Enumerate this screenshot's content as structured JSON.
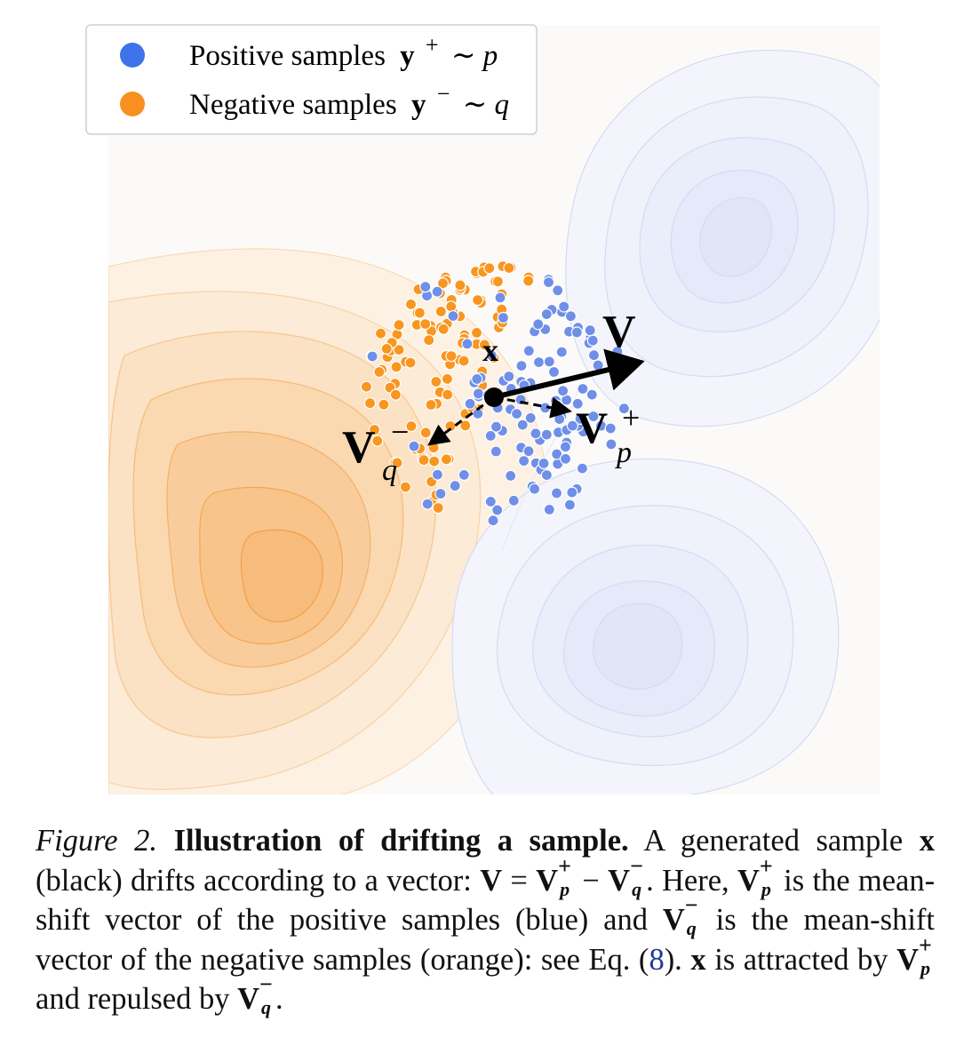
{
  "figure": {
    "legend": {
      "positive": {
        "text": "Positive samples",
        "var": "y",
        "sup": "+",
        "dist": "∼ p",
        "color": "#3e73ea"
      },
      "negative": {
        "text": "Negative samples",
        "var": "y",
        "sup": "−",
        "dist": "∼ q",
        "color": "#f7901e"
      }
    },
    "labels": {
      "x": "x",
      "V": "V",
      "Vp": {
        "base": "V",
        "sup": "+",
        "sub": "p"
      },
      "Vq": {
        "base": "V",
        "sup": "−",
        "sub": "q"
      }
    },
    "colors": {
      "positive_fill": "#6f8fe8",
      "negative_fill": "#f8961f",
      "positive_contour": "#c9d2f0",
      "negative_contour": "#f7c690",
      "arrow": "#000000"
    }
  },
  "caption": {
    "label": "Figure 2.",
    "title": "Illustration of drifting a sample.",
    "s1": "A generated sample",
    "x": "x",
    "s2": "(black) drifts according to a vector:",
    "eq": {
      "lhs": "V",
      "eqsign": "=",
      "minus": "−"
    },
    "s3": ". Here,",
    "s4": "is the mean-shift vector of the positive samples (blue) and",
    "s5": "is the mean-shift vector of the negative samples (orange): see Eq. (",
    "eqref": "8",
    "s6": ").",
    "s7": "is attracted by",
    "s8": "and repulsed by",
    "s9": "."
  }
}
